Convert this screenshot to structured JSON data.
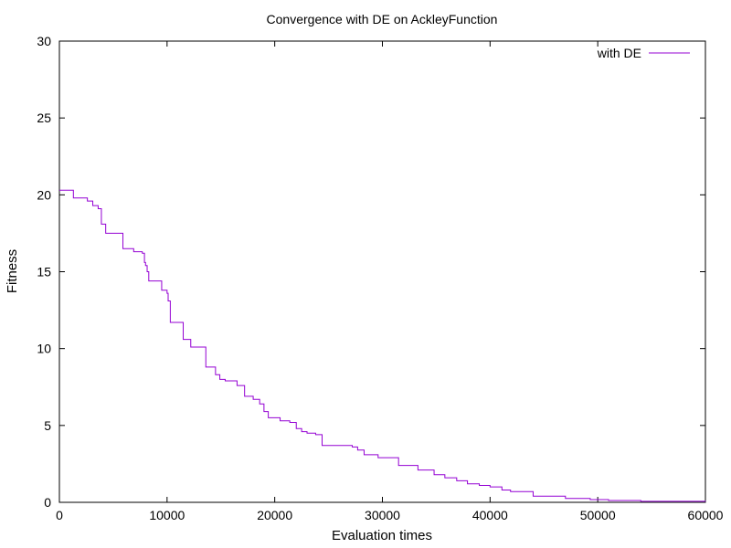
{
  "chart_data": {
    "type": "line",
    "title": "Convergence with DE on AckleyFunction",
    "xlabel": "Evaluation times",
    "ylabel": "Fitness",
    "xlim": [
      0,
      60000
    ],
    "ylim": [
      0,
      30
    ],
    "xticks": [
      0,
      10000,
      20000,
      30000,
      40000,
      50000,
      60000
    ],
    "yticks": [
      0,
      5,
      10,
      15,
      20,
      25,
      30
    ],
    "grid": false,
    "legend_position": "top-right",
    "series": [
      {
        "name": "with DE",
        "color": "#9400d3",
        "step": true,
        "x": [
          0,
          1300,
          2600,
          3100,
          3600,
          3900,
          4300,
          5900,
          6900,
          7700,
          7900,
          8000,
          8150,
          8300,
          9500,
          10000,
          10100,
          10300,
          11500,
          12200,
          13600,
          14500,
          14900,
          15400,
          16500,
          17200,
          18000,
          18600,
          19000,
          19400,
          20500,
          21400,
          22000,
          22500,
          23000,
          23800,
          24400,
          27200,
          27700,
          28300,
          29600,
          31500,
          33300,
          34800,
          35800,
          36900,
          37900,
          39000,
          40000,
          41100,
          41900,
          44000,
          47000,
          49300,
          51000,
          54000,
          60000
        ],
        "y": [
          20.3,
          19.8,
          19.6,
          19.3,
          19.1,
          18.1,
          17.5,
          16.5,
          16.3,
          16.2,
          15.6,
          15.4,
          15.0,
          14.4,
          13.8,
          13.6,
          13.1,
          11.7,
          10.6,
          10.1,
          8.8,
          8.3,
          8.0,
          7.9,
          7.6,
          6.9,
          6.7,
          6.4,
          5.9,
          5.5,
          5.3,
          5.2,
          4.8,
          4.6,
          4.5,
          4.4,
          3.7,
          3.6,
          3.4,
          3.1,
          2.9,
          2.4,
          2.1,
          1.8,
          1.6,
          1.4,
          1.2,
          1.1,
          1.0,
          0.8,
          0.7,
          0.4,
          0.25,
          0.18,
          0.12,
          0.07,
          0.05
        ]
      }
    ]
  }
}
